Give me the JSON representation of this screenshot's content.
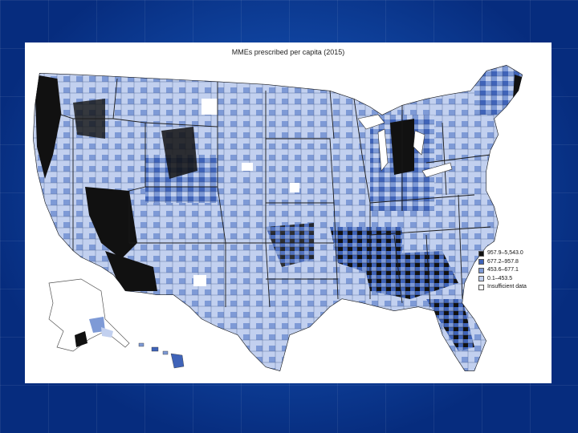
{
  "map": {
    "title": "MMEs prescribed per capita (2015)",
    "legend": [
      {
        "label": "957.9–5,543.0",
        "color": "#111111"
      },
      {
        "label": "677.2–957.8",
        "color": "#3f63b8"
      },
      {
        "label": "453.6–677.1",
        "color": "#7e9ad6"
      },
      {
        "label": "0.1–453.5",
        "color": "#c2d0ef"
      },
      {
        "label": "Insufficient data",
        "color": "#ffffff"
      }
    ],
    "border_color": "#1a1a1a"
  }
}
